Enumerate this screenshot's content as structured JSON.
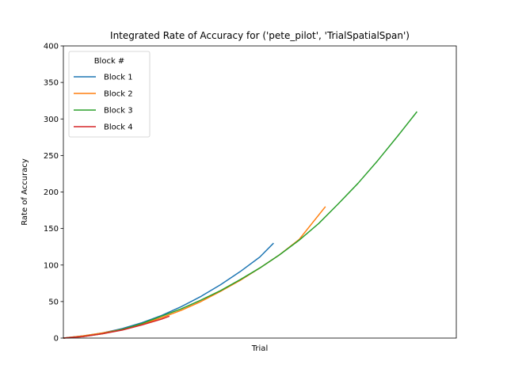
{
  "chart_data": {
    "type": "line",
    "title": "Integrated Rate of Accuracy for ('pete_pilot', 'TrialSpatialSpan')",
    "xlabel": "Trial",
    "ylabel": "Rate of Accuracy",
    "ylim": [
      0,
      400
    ],
    "yticks": [
      "0",
      "50",
      "100",
      "150",
      "200",
      "250",
      "300",
      "350",
      "400"
    ],
    "xlim": [
      0,
      1
    ],
    "grid": false,
    "legend": {
      "title": "Block #",
      "placement": "top-left"
    },
    "series": [
      {
        "name": "Block 1",
        "color": "#1f77b4",
        "x": [
          0,
          0.05,
          0.1,
          0.15,
          0.2,
          0.25,
          0.3,
          0.35,
          0.4,
          0.45,
          0.5,
          0.535
        ],
        "y": [
          0,
          3,
          7,
          13,
          21,
          31,
          43,
          57,
          73,
          91,
          111,
          130
        ]
      },
      {
        "name": "Block 2",
        "color": "#ff7f0e",
        "x": [
          0,
          0.05,
          0.1,
          0.15,
          0.2,
          0.25,
          0.3,
          0.35,
          0.4,
          0.45,
          0.5,
          0.55,
          0.6,
          0.667
        ],
        "y": [
          0,
          3,
          7,
          12,
          19,
          28,
          38,
          50,
          64,
          79,
          96,
          114,
          135,
          180
        ]
      },
      {
        "name": "Block 3",
        "color": "#2ca02c",
        "x": [
          0,
          0.05,
          0.1,
          0.15,
          0.2,
          0.25,
          0.3,
          0.35,
          0.4,
          0.45,
          0.5,
          0.55,
          0.6,
          0.65,
          0.7,
          0.75,
          0.8,
          0.85,
          0.9
        ],
        "y": [
          0,
          2,
          6,
          12,
          20,
          30,
          40,
          52,
          65,
          80,
          96,
          114,
          134,
          157,
          184,
          212,
          243,
          276,
          310
        ]
      },
      {
        "name": "Block 4",
        "color": "#d62728",
        "x": [
          0,
          0.05,
          0.1,
          0.15,
          0.2,
          0.25,
          0.27
        ],
        "y": [
          0,
          2,
          6,
          11,
          18,
          26,
          30
        ]
      }
    ]
  }
}
